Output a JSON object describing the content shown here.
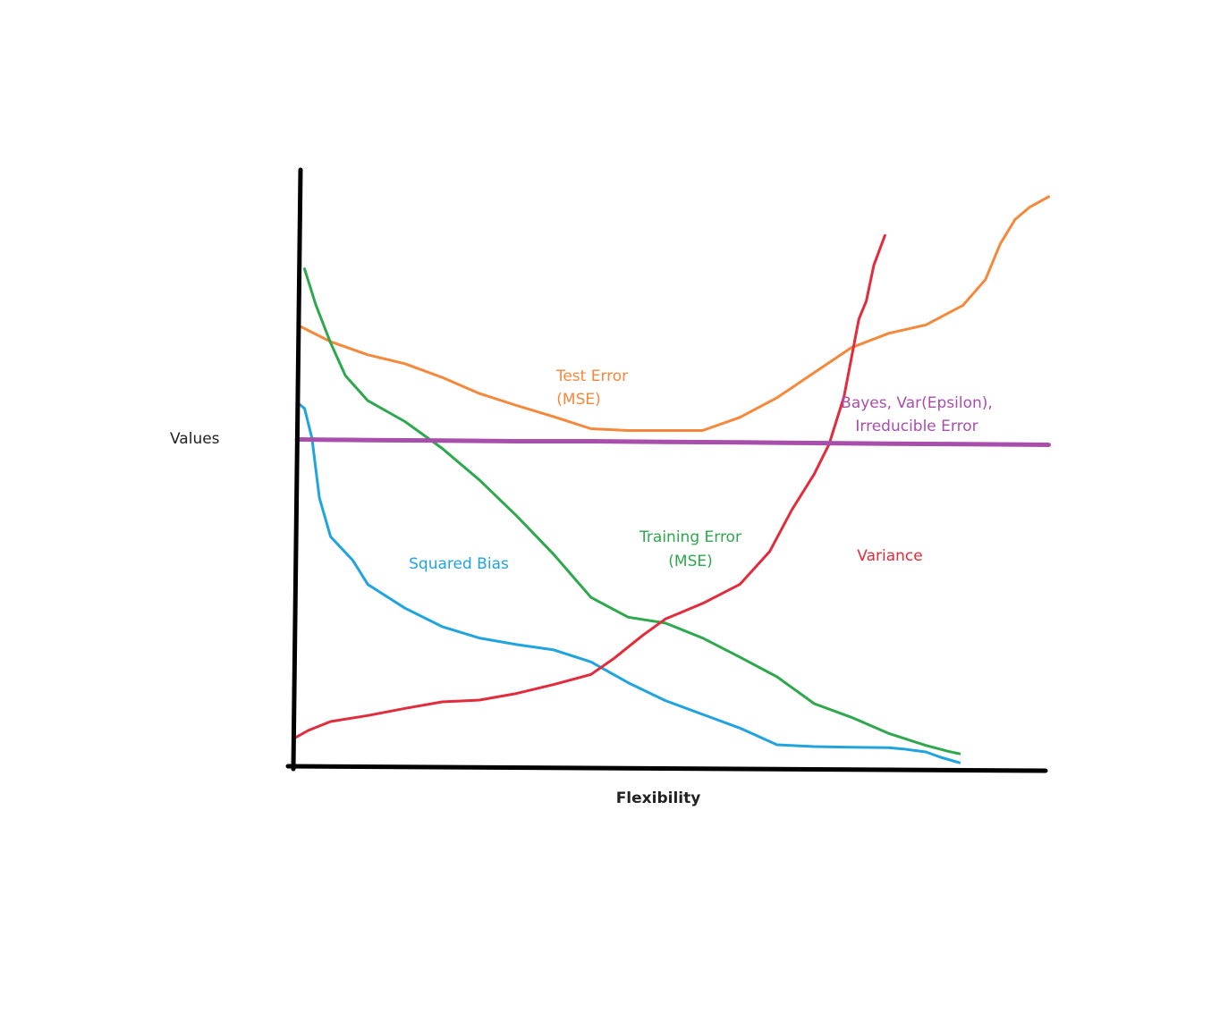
{
  "chart_data": {
    "type": "line",
    "title": "",
    "xlabel": "Flexibility",
    "ylabel": "Values",
    "xlim": [
      0,
      100
    ],
    "ylim": [
      0,
      100
    ],
    "grid": false,
    "legend": "none",
    "axis_color": "#000000",
    "series": [
      {
        "name": "Test Error",
        "sublabel": "(MSE)",
        "color": "#f5883b",
        "points": [
          [
            1,
            73.7
          ],
          [
            5,
            71.2
          ],
          [
            10,
            69
          ],
          [
            15,
            67.5
          ],
          [
            20,
            65.2
          ],
          [
            25,
            62.5
          ],
          [
            30,
            60.5
          ],
          [
            35,
            58.6
          ],
          [
            40,
            56.6
          ],
          [
            45,
            56.3
          ],
          [
            50,
            56.3
          ],
          [
            55,
            56.3
          ],
          [
            60,
            58.5
          ],
          [
            65,
            61.8
          ],
          [
            70,
            66
          ],
          [
            75,
            70.2
          ],
          [
            80,
            72.6
          ],
          [
            85,
            74
          ],
          [
            90,
            77.3
          ],
          [
            93,
            81.6
          ],
          [
            95,
            87.6
          ],
          [
            97,
            91.7
          ],
          [
            99,
            93.8
          ],
          [
            101.5,
            95.5
          ]
        ]
      },
      {
        "name": "Training Error",
        "sublabel": "(MSE)",
        "color": "#2ea84c",
        "points": [
          [
            1.5,
            83.4
          ],
          [
            3,
            77.4
          ],
          [
            5,
            71
          ],
          [
            7,
            65.5
          ],
          [
            10,
            61.3
          ],
          [
            15,
            57.8
          ],
          [
            20,
            53.3
          ],
          [
            25,
            48
          ],
          [
            30,
            42
          ],
          [
            35,
            35.5
          ],
          [
            40,
            28.3
          ],
          [
            45,
            25
          ],
          [
            50,
            24
          ],
          [
            55,
            21.5
          ],
          [
            60,
            18.3
          ],
          [
            65,
            15
          ],
          [
            70,
            10.5
          ],
          [
            75,
            8.2
          ],
          [
            80,
            5.5
          ],
          [
            85,
            3.5
          ],
          [
            88,
            2.5
          ],
          [
            89.5,
            2.1
          ]
        ]
      },
      {
        "name": "Squared Bias",
        "color": "#20a4e0",
        "points": [
          [
            0.5,
            61
          ],
          [
            1.5,
            60
          ],
          [
            2.5,
            55
          ],
          [
            3.5,
            45
          ],
          [
            5,
            38.5
          ],
          [
            8,
            34.5
          ],
          [
            10,
            30.5
          ],
          [
            15,
            26.5
          ],
          [
            20,
            23.4
          ],
          [
            25,
            21.5
          ],
          [
            30,
            20.4
          ],
          [
            35,
            19.5
          ],
          [
            40,
            17.5
          ],
          [
            45,
            14
          ],
          [
            50,
            11
          ],
          [
            55,
            8.7
          ],
          [
            60,
            6.4
          ],
          [
            65,
            3.6
          ],
          [
            70,
            3.3
          ],
          [
            75,
            3.2
          ],
          [
            80,
            3.1
          ],
          [
            82,
            2.9
          ],
          [
            85,
            2.4
          ],
          [
            87,
            1.5
          ],
          [
            89.5,
            0.6
          ]
        ]
      },
      {
        "name": "Variance",
        "color": "#e22b3b",
        "points": [
          [
            0,
            4.6
          ],
          [
            2,
            6
          ],
          [
            5,
            7.5
          ],
          [
            10,
            8.5
          ],
          [
            15,
            9.7
          ],
          [
            20,
            10.8
          ],
          [
            25,
            11.1
          ],
          [
            30,
            12.2
          ],
          [
            35,
            13.7
          ],
          [
            40,
            15.4
          ],
          [
            43,
            18
          ],
          [
            47,
            22
          ],
          [
            50,
            24.7
          ],
          [
            55,
            27.3
          ],
          [
            60,
            30.5
          ],
          [
            64,
            36
          ],
          [
            67,
            43
          ],
          [
            70,
            49
          ],
          [
            72,
            54
          ],
          [
            74,
            62
          ],
          [
            76,
            75
          ],
          [
            77,
            78
          ],
          [
            78,
            84
          ],
          [
            79.5,
            89
          ]
        ]
      },
      {
        "name": "Bayes, Var(Epsilon),",
        "sublabel": "Irreducible Error",
        "color": "#a84fab",
        "points": [
          [
            0.5,
            54.8
          ],
          [
            10,
            54.7
          ],
          [
            20,
            54.6
          ],
          [
            30,
            54.5
          ],
          [
            40,
            54.5
          ],
          [
            50,
            54.4
          ],
          [
            60,
            54.3
          ],
          [
            70,
            54.2
          ],
          [
            80,
            54.1
          ],
          [
            90,
            54
          ],
          [
            101.5,
            53.9
          ]
        ]
      }
    ]
  }
}
